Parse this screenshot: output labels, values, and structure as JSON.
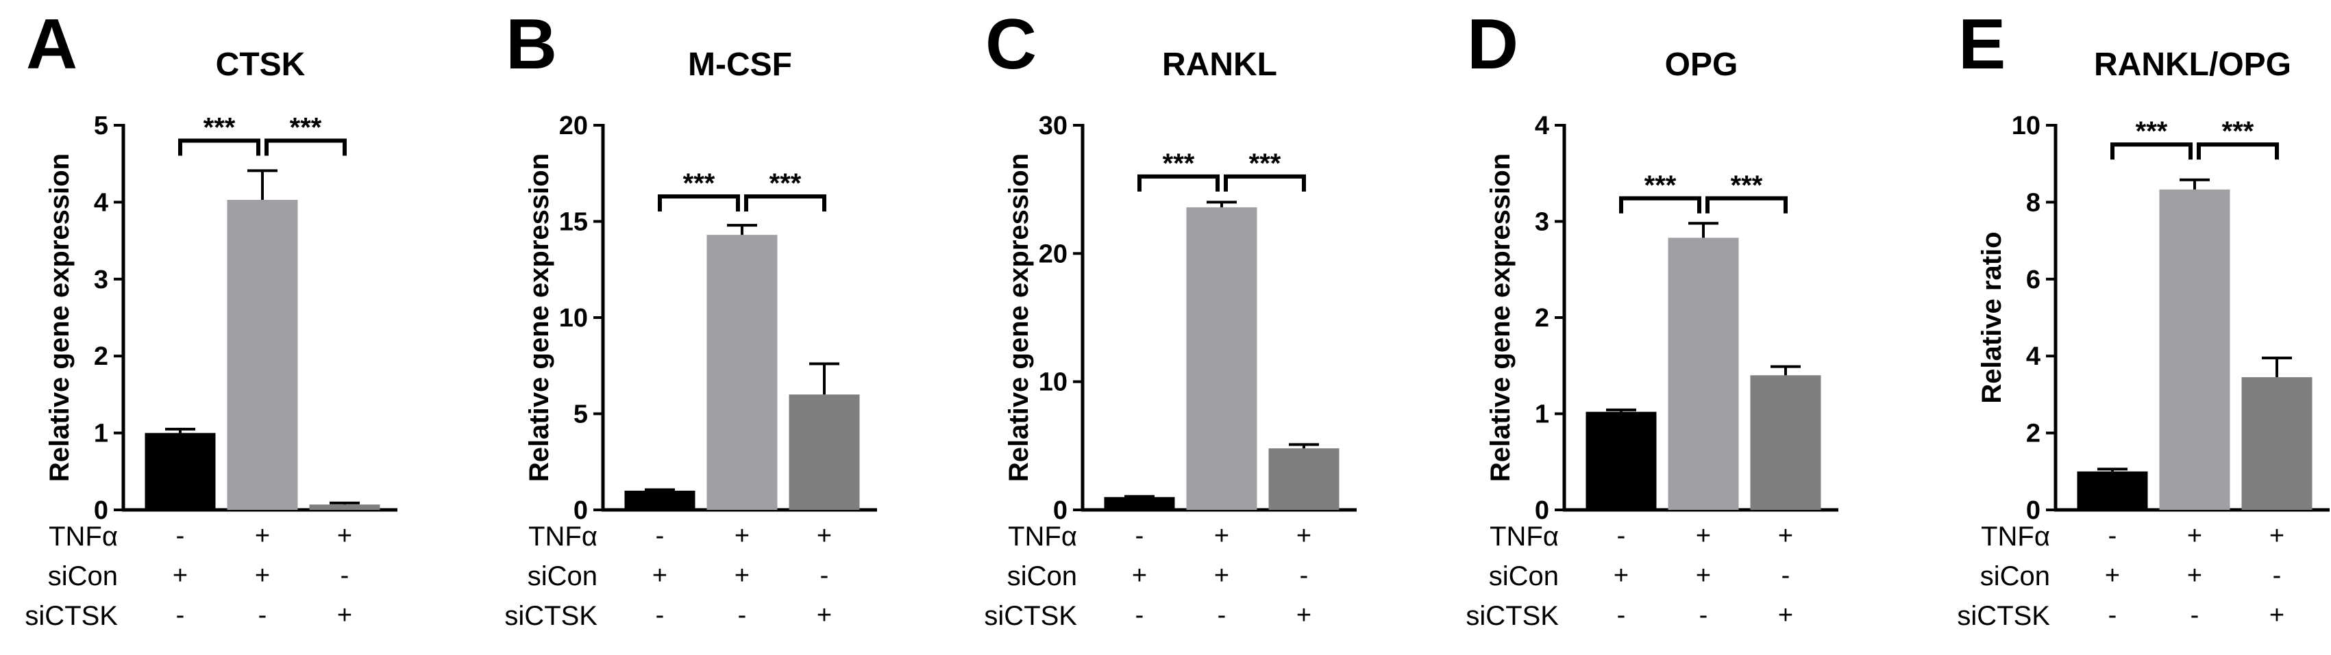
{
  "conditions": {
    "tnf_label": "TNFα",
    "sicon_label": "siCon",
    "sictsk_label": "siCTSK",
    "tnf": [
      "-",
      "+",
      "+"
    ],
    "sicon": [
      "+",
      "+",
      "-"
    ],
    "sictsk": [
      "-",
      "-",
      "+"
    ]
  },
  "colors": {
    "bar1": "#000000",
    "bar2": "#a0a0a4",
    "bar3": "#7f7f7f"
  },
  "chart_data": [
    {
      "type": "bar",
      "panel": "A",
      "title": "CTSK",
      "ylabel": "Relative gene expression",
      "ylim": [
        0,
        5
      ],
      "yticks": [
        0,
        1,
        2,
        3,
        4,
        5
      ],
      "categories": [
        "TNFα- siCon+ siCTSK-",
        "TNFα+ siCon+ siCTSK-",
        "TNFα+ siCon- siCTSK+"
      ],
      "values": [
        1.0,
        4.03,
        0.07
      ],
      "errors": [
        0.05,
        0.38,
        0.02
      ],
      "significance": [
        {
          "from": 0,
          "to": 1,
          "label": "***"
        },
        {
          "from": 1,
          "to": 2,
          "label": "***"
        }
      ],
      "bracket_y": 4.8
    },
    {
      "type": "bar",
      "panel": "B",
      "title": "M-CSF",
      "ylabel": "Relative gene expression",
      "ylim": [
        0,
        20
      ],
      "yticks": [
        0,
        5,
        10,
        15,
        20
      ],
      "categories": [
        "TNFα- siCon+ siCTSK-",
        "TNFα+ siCon+ siCTSK-",
        "TNFα+ siCon- siCTSK+"
      ],
      "values": [
        1.0,
        14.3,
        6.0
      ],
      "errors": [
        0.05,
        0.5,
        1.6
      ],
      "significance": [
        {
          "from": 0,
          "to": 1,
          "label": "***"
        },
        {
          "from": 1,
          "to": 2,
          "label": "***"
        }
      ],
      "bracket_y": 16.3
    },
    {
      "type": "bar",
      "panel": "C",
      "title": "RANKL",
      "ylabel": "Relative gene expression",
      "ylim": [
        0,
        30
      ],
      "yticks": [
        0,
        10,
        20,
        30
      ],
      "categories": [
        "TNFα- siCon+ siCTSK-",
        "TNFα+ siCon+ siCTSK-",
        "TNFα+ siCon- siCTSK+"
      ],
      "values": [
        1.0,
        23.6,
        4.8
      ],
      "errors": [
        0.05,
        0.4,
        0.3
      ],
      "significance": [
        {
          "from": 0,
          "to": 1,
          "label": "***"
        },
        {
          "from": 1,
          "to": 2,
          "label": "***"
        }
      ],
      "bracket_y": 26.0
    },
    {
      "type": "bar",
      "panel": "D",
      "title": "OPG",
      "ylabel": "Relative gene expression",
      "ylim": [
        0,
        4
      ],
      "yticks": [
        0,
        1,
        2,
        3,
        4
      ],
      "categories": [
        "TNFα- siCon+ siCTSK-",
        "TNFα+ siCon+ siCTSK-",
        "TNFα+ siCon- siCTSK+"
      ],
      "values": [
        1.02,
        2.83,
        1.4
      ],
      "errors": [
        0.02,
        0.15,
        0.09
      ],
      "significance": [
        {
          "from": 0,
          "to": 1,
          "label": "***"
        },
        {
          "from": 1,
          "to": 2,
          "label": "***"
        }
      ],
      "bracket_y": 3.24
    },
    {
      "type": "bar",
      "panel": "E",
      "title": "RANKL/OPG",
      "ylabel": "Relative ratio",
      "ylim": [
        0,
        10
      ],
      "yticks": [
        0,
        2,
        4,
        6,
        8,
        10
      ],
      "categories": [
        "TNFα- siCon+ siCTSK-",
        "TNFα+ siCon+ siCTSK-",
        "TNFα+ siCon- siCTSK+"
      ],
      "values": [
        1.0,
        8.33,
        3.45
      ],
      "errors": [
        0.06,
        0.25,
        0.5
      ],
      "significance": [
        {
          "from": 0,
          "to": 1,
          "label": "***"
        },
        {
          "from": 1,
          "to": 2,
          "label": "***"
        }
      ],
      "bracket_y": 9.5
    }
  ]
}
